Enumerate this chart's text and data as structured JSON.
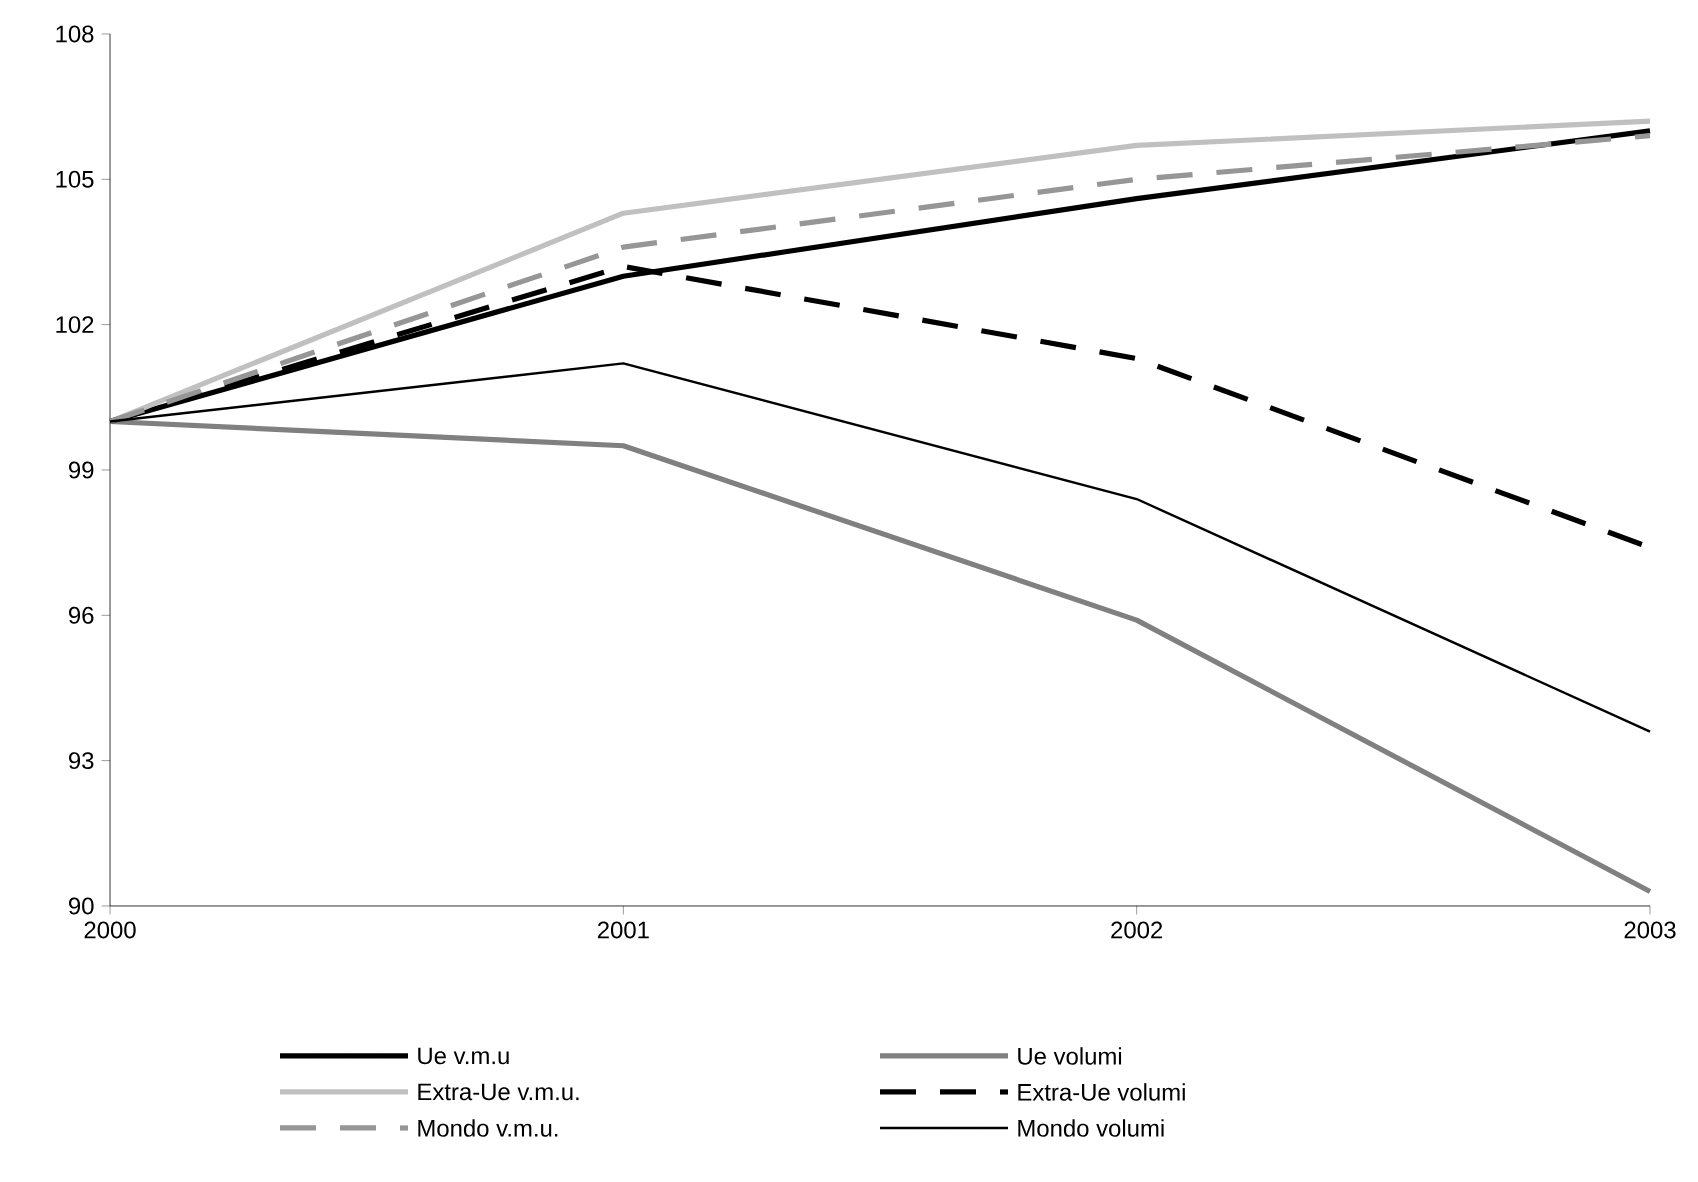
{
  "chart_data": {
    "type": "line",
    "x": [
      2000,
      2001,
      2002,
      2003
    ],
    "xlim": [
      2000,
      2003
    ],
    "xticks": [
      2000,
      2001,
      2002,
      2003
    ],
    "ylim": [
      90,
      108
    ],
    "yticks": [
      90,
      93,
      96,
      99,
      102,
      105,
      108
    ],
    "grid": false,
    "legend": "bottom",
    "marker": "none",
    "series": [
      {
        "name": "Ue v.m.u",
        "color": "#000000",
        "values": [
          100,
          103.0,
          104.6,
          106.0
        ]
      },
      {
        "name": "Ue volumi",
        "color": "#808080",
        "values": [
          100,
          99.5,
          95.9,
          90.3
        ]
      },
      {
        "name": "Extra-Ue v.m.u.",
        "color": "#c0c0c0",
        "values": [
          100,
          104.3,
          105.7,
          106.2
        ]
      },
      {
        "name": "Extra-Ue volumi",
        "color": "#000000",
        "line_style": "dashed",
        "values": [
          100,
          103.2,
          101.3,
          97.4
        ]
      },
      {
        "name": "Mondo v.m.u.",
        "color": "#969696",
        "line_style": "dashed",
        "values": [
          100,
          103.6,
          105.0,
          105.9
        ]
      },
      {
        "name": "Mondo volumi",
        "color": "#000000",
        "values": [
          100,
          101.2,
          98.4,
          93.6
        ]
      }
    ]
  }
}
